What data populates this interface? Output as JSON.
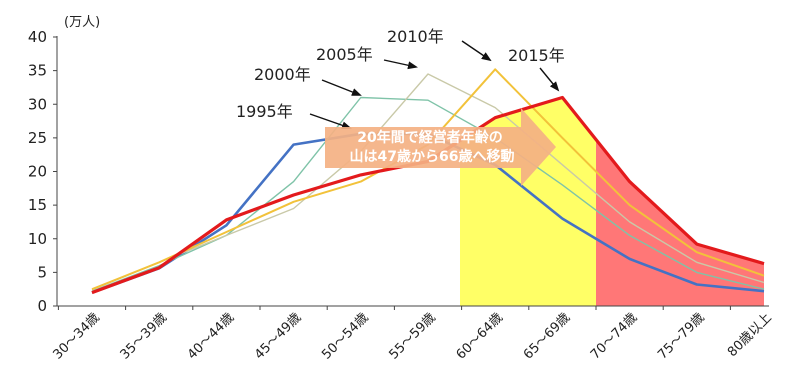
{
  "chart_data": {
    "type": "line",
    "unit_label": "(万人)",
    "categories": [
      "30～34歳",
      "35～39歳",
      "40～44歳",
      "45～49歳",
      "50～54歳",
      "55～59歳",
      "60～64歳",
      "65～69歳",
      "70～74歳",
      "75～79歳",
      "80歳以上"
    ],
    "ylim": [
      0,
      40
    ],
    "yticks": [
      0,
      5,
      10,
      15,
      20,
      25,
      30,
      35,
      40
    ],
    "grid": false,
    "series": [
      {
        "name": "1995年",
        "color": "#4472c4",
        "values": [
          2.0,
          5.6,
          12.0,
          24.0,
          25.6,
          25.6,
          21.0,
          13.0,
          7.0,
          3.2,
          2.2
        ]
      },
      {
        "name": "2000年",
        "color": "#7fc3a8",
        "values": [
          2.2,
          6.0,
          10.5,
          18.5,
          31.0,
          30.6,
          25.0,
          18.0,
          10.5,
          5.0,
          2.5
        ]
      },
      {
        "name": "2005年",
        "color": "#c9c9a8",
        "values": [
          2.4,
          6.5,
          10.5,
          14.5,
          23.0,
          34.5,
          29.5,
          21.0,
          12.5,
          6.5,
          3.5
        ]
      },
      {
        "name": "2010年",
        "color": "#f2c23a",
        "values": [
          2.5,
          6.5,
          11.0,
          15.5,
          18.5,
          24.0,
          35.2,
          25.0,
          15.0,
          8.0,
          4.5
        ]
      },
      {
        "name": "2015年",
        "color": "#e31a1c",
        "values": [
          2.0,
          5.7,
          12.8,
          16.5,
          19.5,
          21.5,
          28.0,
          31.0,
          18.5,
          9.2,
          6.3
        ]
      }
    ],
    "label_arrows": [
      {
        "series": "1995年",
        "label": "1995年"
      },
      {
        "series": "2000年",
        "label": "2000年"
      },
      {
        "series": "2005年",
        "label": "2005年"
      },
      {
        "series": "2010年",
        "label": "2010年"
      },
      {
        "series": "2015年",
        "label": "2015年"
      }
    ],
    "callout": {
      "line1": "20年間で経営者年齢の",
      "line2": "山は47歳から66歳へ移動"
    },
    "highlight_colors": {
      "yellow": "#ffff66",
      "red": "#ff7777",
      "arrow": "#f4b183"
    }
  }
}
